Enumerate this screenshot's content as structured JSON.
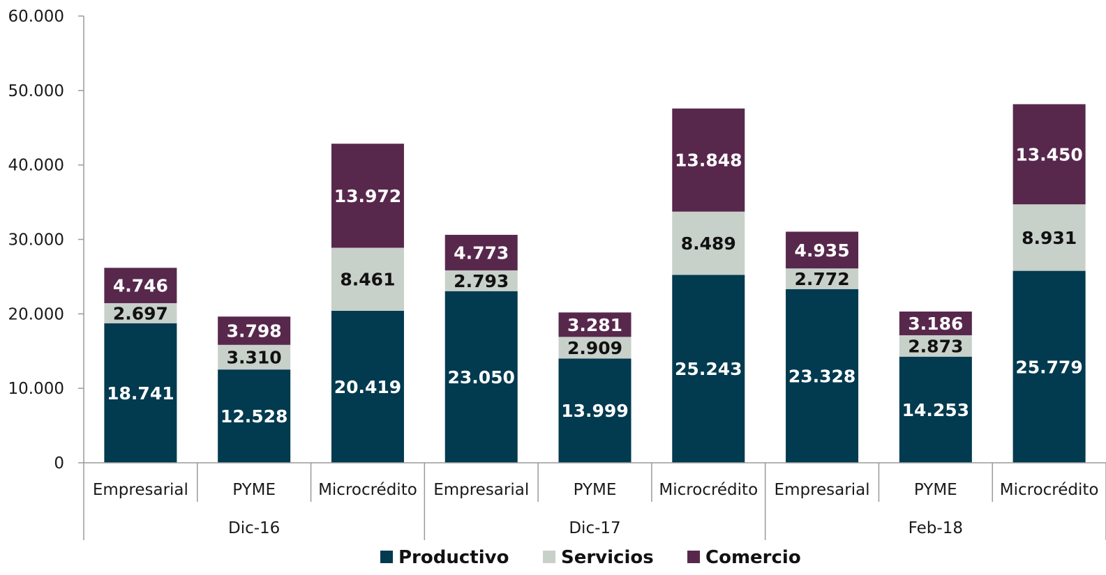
{
  "chart_data": {
    "type": "bar",
    "stacked": true,
    "groups": [
      "Dic-16",
      "Dic-17",
      "Feb-18"
    ],
    "categories": [
      "Empresarial",
      "PYME",
      "Microcrédito",
      "Empresarial",
      "PYME",
      "Microcrédito",
      "Empresarial",
      "PYME",
      "Microcrédito"
    ],
    "group_of_category": [
      0,
      0,
      0,
      1,
      1,
      1,
      2,
      2,
      2
    ],
    "series": [
      {
        "name": "Productivo",
        "color": "#023a4f",
        "label_color": "#ffffff",
        "values": [
          18741,
          12528,
          20419,
          23050,
          13999,
          25243,
          23328,
          14253,
          25779
        ],
        "labels": [
          "18.741",
          "12.528",
          "20.419",
          "23.050",
          "13.999",
          "25.243",
          "23.328",
          "14.253",
          "25.779"
        ]
      },
      {
        "name": "Servicios",
        "color": "#c8d0ca",
        "label_color": "#111111",
        "values": [
          2697,
          3310,
          8461,
          2793,
          2909,
          8489,
          2772,
          2873,
          8931
        ],
        "labels": [
          "2.697",
          "3.310",
          "8.461",
          "2.793",
          "2.909",
          "8.489",
          "2.772",
          "2.873",
          "8.931"
        ]
      },
      {
        "name": "Comercio",
        "color": "#58284c",
        "label_color": "#ffffff",
        "values": [
          4746,
          3798,
          13972,
          4773,
          3281,
          13848,
          4935,
          3186,
          13450
        ],
        "labels": [
          "4.746",
          "3.798",
          "13.972",
          "4.773",
          "3.281",
          "13.848",
          "4.935",
          "3.186",
          "13.450"
        ]
      }
    ],
    "ylim": [
      0,
      60000
    ],
    "yticks": [
      0,
      10000,
      20000,
      30000,
      40000,
      50000,
      60000
    ],
    "ytick_labels": [
      "0",
      "10.000",
      "20.000",
      "30.000",
      "40.000",
      "50.000",
      "60.000"
    ],
    "grid": false,
    "legend_position": "bottom",
    "title": "",
    "xlabel": "",
    "ylabel": ""
  }
}
